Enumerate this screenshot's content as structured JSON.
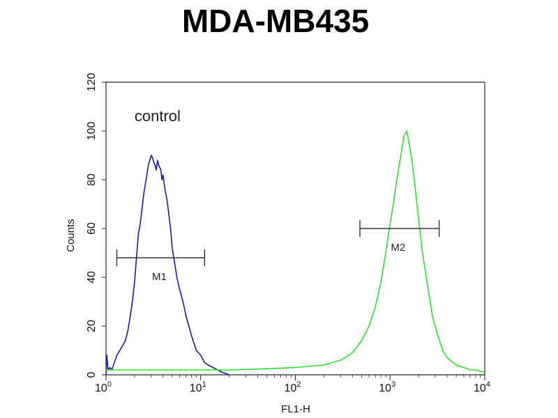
{
  "chart_data": {
    "type": "line",
    "title": "MDA-MB435",
    "xlabel": "FL1-H",
    "ylabel": "Counts",
    "x_scale": "log",
    "xlim": [
      1,
      10000
    ],
    "ylim": [
      0,
      120
    ],
    "y_ticks": [
      "0",
      "20",
      "40",
      "60",
      "80",
      "100",
      "120"
    ],
    "x_ticks": [
      {
        "base": "10",
        "exp": "0"
      },
      {
        "base": "10",
        "exp": "1"
      },
      {
        "base": "10",
        "exp": "2"
      },
      {
        "base": "10",
        "exp": "3"
      },
      {
        "base": "10",
        "exp": "4"
      }
    ],
    "grid": false,
    "annotations": [
      {
        "text": "control",
        "x": 2.0,
        "y": 104
      }
    ],
    "series": [
      {
        "color": "#1a1aa8",
        "x": [
          1.0,
          1.02,
          1.05,
          1.1,
          1.15,
          1.2,
          1.3,
          1.4,
          1.5,
          1.6,
          1.7,
          1.8,
          1.9,
          2.0,
          2.1,
          2.2,
          2.3,
          2.4,
          2.5,
          2.6,
          2.7,
          2.8,
          2.9,
          3.0,
          3.1,
          3.2,
          3.3,
          3.4,
          3.5,
          3.6,
          3.7,
          3.8,
          3.9,
          4.0,
          4.2,
          4.4,
          4.6,
          4.8,
          5.0,
          5.3,
          5.6,
          6.0,
          6.5,
          7.0,
          7.5,
          8.0,
          9.0,
          10.0,
          11.0,
          12.0,
          13.5,
          15.0,
          17.0,
          20.0
        ],
        "y": [
          0,
          8,
          2,
          3,
          2,
          4,
          8,
          10,
          12,
          14,
          18,
          24,
          30,
          38,
          48,
          58,
          62,
          68,
          74,
          78,
          82,
          86,
          88,
          90,
          89,
          87,
          86,
          84,
          88,
          86,
          85,
          84,
          80,
          82,
          76,
          72,
          66,
          60,
          52,
          46,
          40,
          35,
          30,
          24,
          20,
          16,
          10,
          8,
          5,
          4,
          3,
          2,
          1,
          0
        ]
      },
      {
        "color": "#2ee02e",
        "x": [
          1.0,
          2.0,
          5.0,
          10.0,
          20.0,
          50.0,
          100.0,
          200.0,
          300.0,
          400.0,
          500.0,
          600.0,
          700.0,
          800.0,
          900.0,
          1000.0,
          1100.0,
          1200.0,
          1300.0,
          1400.0,
          1500.0,
          1600.0,
          1700.0,
          1800.0,
          2000.0,
          2200.0,
          2500.0,
          2800.0,
          3200.0,
          3600.0,
          4000.0,
          5000.0,
          6000.0,
          7000.0,
          8000.0,
          10000.0
        ],
        "y": [
          2,
          2,
          2,
          2,
          2,
          2.5,
          3,
          4,
          6,
          9,
          14,
          20,
          28,
          38,
          50,
          62,
          72,
          82,
          90,
          98,
          100,
          94,
          88,
          80,
          64,
          50,
          36,
          24,
          16,
          10,
          7,
          4,
          3,
          2,
          2,
          1
        ]
      }
    ],
    "markers": [
      {
        "label": "M1",
        "x_start": 1.3,
        "x_end": 11.0,
        "y": 48,
        "color": "#333333"
      },
      {
        "label": "M2",
        "x_start": 480.0,
        "x_end": 3300.0,
        "y": 60,
        "color": "#333333"
      }
    ]
  }
}
